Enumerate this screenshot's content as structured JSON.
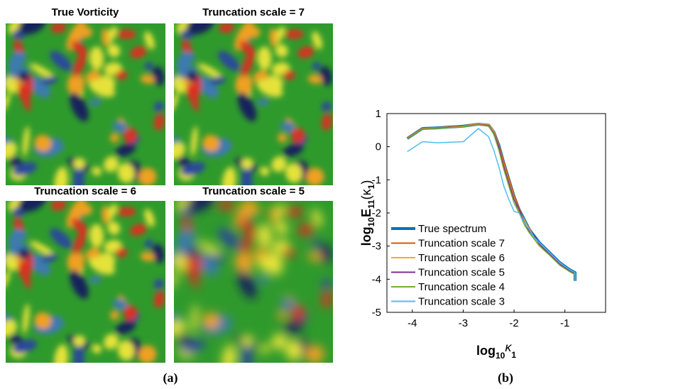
{
  "panels": [
    {
      "title": "True Vorticity"
    },
    {
      "title": "Truncation scale = 7"
    },
    {
      "title": "Truncation scale = 6"
    },
    {
      "title": "Truncation scale = 5"
    }
  ],
  "captions": [
    "(a)",
    "(b)"
  ],
  "chart_data": {
    "type": "line",
    "xlabel": [
      "log",
      "10",
      "κ",
      "1"
    ],
    "ylabel": [
      "log",
      "10",
      "E",
      "11",
      "(κ",
      "1",
      ")"
    ],
    "xlim": [
      -4.5,
      -0.2
    ],
    "ylim": [
      -5,
      1
    ],
    "xticks": [
      -4,
      -3,
      -2,
      -1
    ],
    "yticks": [
      -5,
      -4,
      -3,
      -2,
      -1,
      0,
      1
    ],
    "legend": "lower left",
    "x": [
      -4.1,
      -3.8,
      -3.5,
      -3.0,
      -2.7,
      -2.5,
      -2.4,
      -2.3,
      -2.2,
      -2.1,
      -2.0,
      -1.9,
      -1.8,
      -1.7,
      -1.6,
      -1.5,
      -1.3,
      -1.1,
      -0.9,
      -0.8,
      -0.8
    ],
    "series": [
      {
        "name": "True spectrum",
        "color": "#0072bd",
        "values": [
          0.25,
          0.55,
          0.57,
          0.62,
          0.68,
          0.65,
          0.45,
          0.05,
          -0.5,
          -1.0,
          -1.5,
          -1.9,
          -2.2,
          -2.5,
          -2.7,
          -2.9,
          -3.2,
          -3.5,
          -3.72,
          -3.8,
          -4.05
        ]
      },
      {
        "name": "Truncation scale 7",
        "color": "#d95319",
        "values": [
          0.27,
          0.56,
          0.58,
          0.63,
          0.7,
          0.67,
          0.48,
          0.08,
          -0.45,
          -0.95,
          -1.45,
          -1.85,
          -2.25,
          -2.45,
          -2.72,
          -2.92,
          -3.22,
          -3.52,
          -3.74,
          -3.82,
          -4.05
        ]
      },
      {
        "name": "Truncation scale 6",
        "color": "#edb120",
        "values": [
          0.26,
          0.55,
          0.57,
          0.62,
          0.69,
          0.66,
          0.47,
          0.02,
          -0.55,
          -1.05,
          -1.55,
          -1.95,
          -2.2,
          -2.5,
          -2.75,
          -2.95,
          -3.25,
          -3.55,
          -3.76,
          -3.84,
          -4.05
        ]
      },
      {
        "name": "Truncation scale 5",
        "color": "#7e2f8e",
        "values": [
          0.25,
          0.54,
          0.56,
          0.61,
          0.67,
          0.64,
          0.42,
          0.0,
          -0.6,
          -1.1,
          -1.6,
          -1.9,
          -2.3,
          -2.55,
          -2.7,
          -2.95,
          -3.25,
          -3.55,
          -3.75,
          -3.83,
          -4.05
        ]
      },
      {
        "name": "Truncation scale 4",
        "color": "#77ac30",
        "values": [
          0.24,
          0.53,
          0.55,
          0.6,
          0.66,
          0.62,
          0.38,
          -0.1,
          -0.7,
          -1.2,
          -1.7,
          -2.0,
          -2.35,
          -2.6,
          -2.8,
          -3.0,
          -3.28,
          -3.58,
          -3.78,
          -3.86,
          -4.05
        ]
      },
      {
        "name": "Truncation scale 3",
        "color": "#4dbeee",
        "values": [
          -0.15,
          0.15,
          0.12,
          0.15,
          0.55,
          0.3,
          -0.1,
          -0.6,
          -1.2,
          -1.6,
          -1.95,
          -2.0,
          -2.3,
          -2.5,
          -2.75,
          -2.9,
          -3.2,
          -3.5,
          -3.72,
          -3.8,
          -4.05
        ]
      }
    ]
  }
}
